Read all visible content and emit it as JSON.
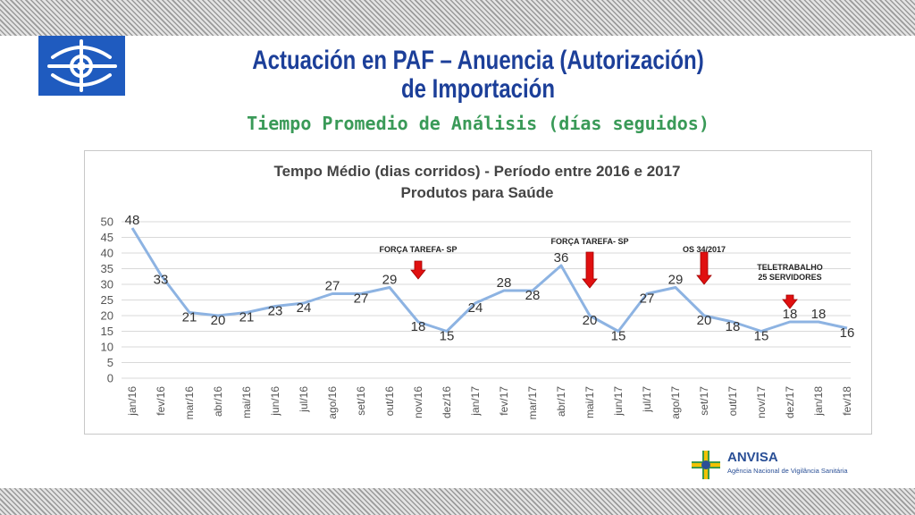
{
  "slide": {
    "title_line1": "Actuación en PAF – Anuencia (Autorización)",
    "title_line2": "de Importación",
    "subtitle": "Tiempo Promedio de Análisis (días seguidos)"
  },
  "footer": {
    "org_name": "ANVISA",
    "org_full": "Agência Nacional de Vigilância Sanitária",
    "logo_icon": "anvisa-cross-icon"
  },
  "header_logo_icon": "eye-cross-logo-icon",
  "chart_data": {
    "type": "line",
    "title_line1": "Tempo Médio (dias corridos) - Período entre 2016 e 2017",
    "title_line2": "Produtos para Saúde",
    "categories": [
      "jan/16",
      "fev/16",
      "mar/16",
      "abr/16",
      "mai/16",
      "jun/16",
      "jul/16",
      "ago/16",
      "set/16",
      "out/16",
      "nov/16",
      "dez/16",
      "jan/17",
      "fev/17",
      "mar/17",
      "abr/17",
      "mai/17",
      "jun/17",
      "jul/17",
      "ago/17",
      "set/17",
      "out/17",
      "nov/17",
      "dez/17",
      "jan/18",
      "fev/18"
    ],
    "values": [
      48,
      33,
      21,
      20,
      21,
      23,
      24,
      27,
      27,
      29,
      18,
      15,
      24,
      28,
      28,
      36,
      20,
      15,
      27,
      29,
      20,
      18,
      15,
      18,
      18,
      16
    ],
    "ylim": [
      0,
      50
    ],
    "yticks": [
      0,
      5,
      10,
      15,
      20,
      25,
      30,
      35,
      40,
      45,
      50
    ],
    "grid": true,
    "line_color": "#8db3e2",
    "annotations": [
      {
        "label": "FORÇA TAREFA- SP",
        "category": "nov/16"
      },
      {
        "label": "FORÇA TAREFA- SP",
        "category": "mai/17"
      },
      {
        "label": "OS 34/2017",
        "category": "set/17"
      },
      {
        "label": "TELETRABALHO 25 SERVIDORES",
        "category": "dez/17"
      }
    ]
  }
}
